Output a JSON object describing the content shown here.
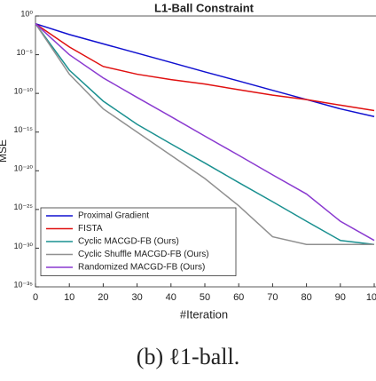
{
  "chart_data": {
    "type": "line",
    "title": "L1-Ball Constraint",
    "caption": "(b) ℓ1-ball.",
    "xlabel": "#Iteration",
    "ylabel": "MSE",
    "log_y": true,
    "x": [
      0,
      10,
      20,
      30,
      40,
      50,
      60,
      70,
      80,
      90,
      100
    ],
    "xlim": [
      0,
      100
    ],
    "xticks": [
      0,
      10,
      20,
      30,
      40,
      50,
      60,
      70,
      80,
      90,
      100
    ],
    "ylim": [
      1e-35,
      1
    ],
    "yticks": [
      {
        "value": 1,
        "label": "10⁰"
      },
      {
        "value": 1e-05,
        "label": "10⁻⁵"
      },
      {
        "value": 1e-10,
        "label": "10⁻¹⁰"
      },
      {
        "value": 1e-15,
        "label": "10⁻¹⁵"
      },
      {
        "value": 1e-20,
        "label": "10⁻²⁰"
      },
      {
        "value": 1e-25,
        "label": "10⁻²⁵"
      },
      {
        "value": 1e-30,
        "label": "10⁻³⁰"
      },
      {
        "value": 1e-35,
        "label": "10⁻³⁵"
      }
    ],
    "legend": "lower left",
    "series": [
      {
        "name": "Proximal Gradient",
        "color": "#1010d0",
        "values": [
          0.1,
          0.004,
          0.00025,
          1.6e-05,
          1e-06,
          6e-08,
          4e-09,
          2.5e-10,
          1.6e-11,
          1e-12,
          1e-13
        ]
      },
      {
        "name": "FISTA",
        "color": "#e01010",
        "values": [
          0.1,
          0.0001,
          3e-07,
          3e-08,
          6e-09,
          1.6e-09,
          3e-10,
          6e-11,
          1.6e-11,
          3e-12,
          6e-13
        ]
      },
      {
        "name": "Cyclic MACGD-FB (Ours)",
        "color": "#1a9090",
        "values": [
          0.1,
          1e-07,
          1e-11,
          1e-14,
          3e-17,
          1e-19,
          3e-22,
          1e-24,
          3e-27,
          1e-29,
          3e-30
        ]
      },
      {
        "name": "Cyclic Shuffle MACGD-FB (Ours)",
        "color": "#909090",
        "values": [
          0.1,
          3e-08,
          1e-12,
          1e-15,
          1e-18,
          1e-21,
          3e-25,
          3e-29,
          3e-30,
          3e-30,
          3e-30
        ]
      },
      {
        "name": "Randomized MACGD-FB (Ours)",
        "color": "#8a3ad0",
        "values": [
          0.1,
          1e-05,
          1e-08,
          3e-11,
          1e-13,
          3e-16,
          1e-18,
          3e-21,
          1e-23,
          3e-27,
          1e-29
        ]
      }
    ]
  }
}
